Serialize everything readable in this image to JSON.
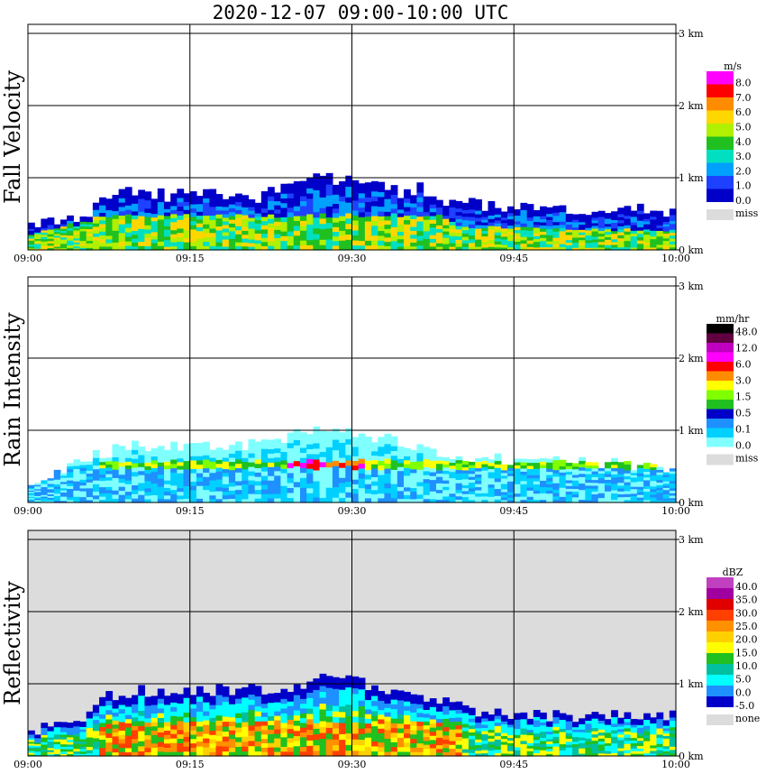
{
  "title": "2020-12-07   09:00-10:00 UTC",
  "x_tick_labels": [
    "09:00",
    "09:15",
    "09:30",
    "09:45",
    "10:00"
  ],
  "y_tick_labels": [
    "0 km",
    "1 km",
    "2 km",
    "3 km"
  ],
  "chart_data": [
    {
      "type": "heatmap",
      "title": "Fall Velocity",
      "x_range": [
        "09:00",
        "10:00"
      ],
      "y_range_km": [
        0,
        3.1
      ],
      "grid": true,
      "colorbar": {
        "unit": "m/s",
        "tick_labels": [
          "8.0",
          "7.0",
          "6.0",
          "5.0",
          "4.0",
          "3.0",
          "2.0",
          "1.0",
          "0.0"
        ],
        "colors": [
          "#ff00ff",
          "#ff0000",
          "#ff8c00",
          "#ffd700",
          "#b0f000",
          "#20c020",
          "#00e0c0",
          "#00a0ff",
          "#1e40ff",
          "#0000c8"
        ],
        "missing_label": "miss"
      },
      "echo_top_km": [
        [
          0,
          0.35
        ],
        [
          5,
          0.45
        ],
        [
          7,
          0.75
        ],
        [
          10,
          0.8
        ],
        [
          13,
          0.75
        ],
        [
          17,
          0.8
        ],
        [
          20,
          0.7
        ],
        [
          24,
          0.85
        ],
        [
          26,
          0.95
        ],
        [
          27,
          1.05
        ],
        [
          28,
          0.95
        ],
        [
          31,
          0.95
        ],
        [
          34,
          0.8
        ],
        [
          36,
          0.85
        ],
        [
          38,
          0.7
        ],
        [
          40,
          0.65
        ],
        [
          45,
          0.6
        ],
        [
          50,
          0.55
        ],
        [
          55,
          0.55
        ],
        [
          60,
          0.55
        ]
      ],
      "rain_top_km": [
        [
          0,
          0.2
        ],
        [
          6,
          0.45
        ],
        [
          38,
          0.45
        ],
        [
          40,
          0.3
        ],
        [
          60,
          0.25
        ]
      ]
    },
    {
      "type": "heatmap",
      "title": "Rain Intensity",
      "x_range": [
        "09:00",
        "10:00"
      ],
      "y_range_km": [
        0,
        3.1
      ],
      "grid": true,
      "colorbar": {
        "unit": "mm/hr",
        "tick_labels": [
          "48.0",
          "12.0",
          "6.0",
          "3.0",
          "1.5",
          "0.5",
          "0.1",
          "0.0"
        ],
        "colors": [
          "#000000",
          "#600040",
          "#c000c0",
          "#ff00ff",
          "#ff0000",
          "#ff8c00",
          "#ffff00",
          "#80ff00",
          "#20c020",
          "#0000c8",
          "#1e90ff",
          "#00d0ff",
          "#80ffff"
        ],
        "missing_label": "miss"
      },
      "bright_band_km": 0.5,
      "echo_top_km": [
        [
          0,
          0.3
        ],
        [
          7,
          0.7
        ],
        [
          10,
          0.8
        ],
        [
          17,
          0.75
        ],
        [
          24,
          0.9
        ],
        [
          27,
          1.05
        ],
        [
          31,
          0.95
        ],
        [
          38,
          0.7
        ],
        [
          42,
          0.6
        ],
        [
          60,
          0.5
        ]
      ]
    },
    {
      "type": "heatmap",
      "title": "Reflectivity",
      "x_range": [
        "09:00",
        "10:00"
      ],
      "y_range_km": [
        0,
        3.1
      ],
      "grid": true,
      "colorbar": {
        "unit": "dBZ",
        "tick_labels": [
          "40.0",
          "35.0",
          "30.0",
          "25.0",
          "20.0",
          "15.0",
          "10.0",
          "5.0",
          "0.0",
          "-5.0"
        ],
        "colors": [
          "#c040c0",
          "#a000a0",
          "#e00000",
          "#ff4000",
          "#ff9000",
          "#ffd000",
          "#ffff00",
          "#20c020",
          "#00c0a0",
          "#00ffff",
          "#1e90ff",
          "#0000c8"
        ],
        "missing_label": "none"
      },
      "echo_top_km": [
        [
          0,
          0.35
        ],
        [
          5,
          0.5
        ],
        [
          7,
          0.85
        ],
        [
          10,
          0.9
        ],
        [
          13,
          0.85
        ],
        [
          17,
          0.9
        ],
        [
          24,
          0.95
        ],
        [
          27,
          1.1
        ],
        [
          31,
          1.0
        ],
        [
          34,
          0.9
        ],
        [
          38,
          0.75
        ],
        [
          42,
          0.6
        ],
        [
          50,
          0.55
        ],
        [
          60,
          0.55
        ]
      ]
    }
  ]
}
